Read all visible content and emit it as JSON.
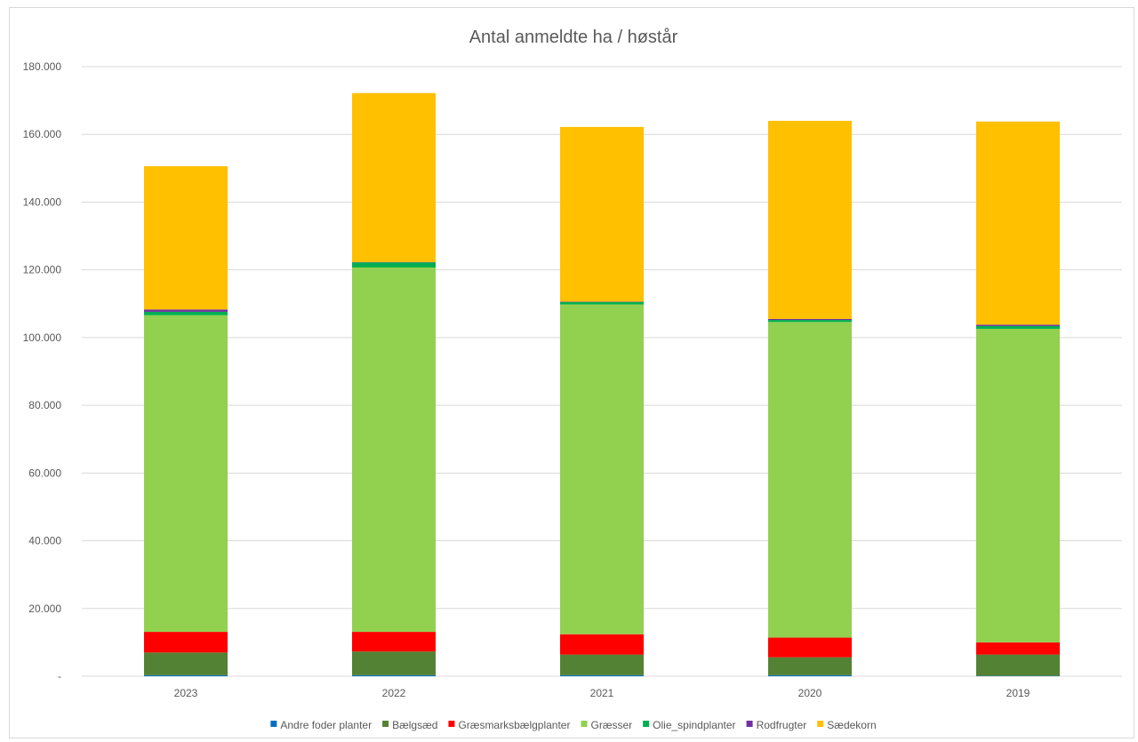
{
  "chart_data": {
    "type": "bar",
    "stacked": true,
    "title": "Antal anmeldte ha / høstår",
    "xlabel": "",
    "ylabel": "",
    "ylim": [
      0,
      180000
    ],
    "y_ticks": [
      0,
      20000,
      40000,
      60000,
      80000,
      100000,
      120000,
      140000,
      160000,
      180000
    ],
    "y_tick_labels": [
      "-",
      "20.000",
      "40.000",
      "60.000",
      "80.000",
      "100.000",
      "120.000",
      "140.000",
      "160.000",
      "180.000"
    ],
    "grid": true,
    "legend_position": "bottom",
    "categories": [
      "2023",
      "2022",
      "2021",
      "2020",
      "2019"
    ],
    "series": [
      {
        "name": "Andre foder planter",
        "color": "#0070C0",
        "values": [
          300,
          300,
          300,
          300,
          100
        ]
      },
      {
        "name": "Bælgsæd",
        "color": "#548235",
        "values": [
          6700,
          7000,
          6100,
          5300,
          6300
        ]
      },
      {
        "name": "Græsmarksbælgplanter",
        "color": "#FF0000",
        "values": [
          6100,
          5800,
          6000,
          5800,
          3600
        ]
      },
      {
        "name": "Græsser",
        "color": "#92D050",
        "values": [
          93500,
          107600,
          97400,
          93200,
          92600
        ]
      },
      {
        "name": "Olie_spindplanter",
        "color": "#00B050",
        "values": [
          1000,
          1500,
          700,
          600,
          800
        ]
      },
      {
        "name": "Rodfrugter",
        "color": "#7030A0",
        "values": [
          700,
          100,
          100,
          300,
          400
        ]
      },
      {
        "name": "Sædekorn",
        "color": "#FFC000",
        "values": [
          42300,
          49900,
          51600,
          58500,
          60000
        ]
      }
    ]
  }
}
